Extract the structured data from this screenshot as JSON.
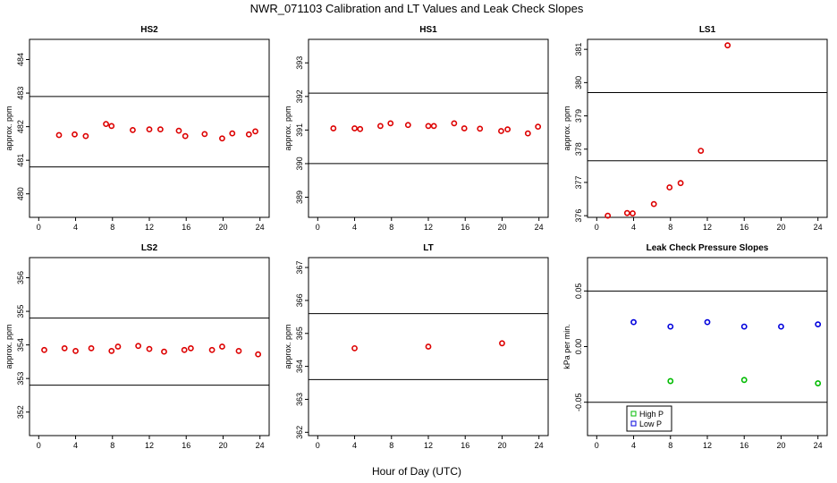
{
  "figure": {
    "title": "NWR_071103  Calibration and LT Values and Leak Check Slopes",
    "xlabel": "Hour of Day (UTC)"
  },
  "chart_data": [
    {
      "type": "scatter",
      "title": "HS2",
      "ylabel": "approx. ppm",
      "xlim": [
        -1,
        25
      ],
      "ylim": [
        479.3,
        484.6
      ],
      "xticks": [
        0,
        4,
        8,
        12,
        16,
        20,
        24
      ],
      "yticks": [
        480,
        481,
        482,
        483,
        484
      ],
      "hlines": [
        482.9,
        480.8
      ],
      "series": [
        {
          "color": "#dd0000",
          "x": [
            2.2,
            3.9,
            5.1,
            7.3,
            7.9,
            10.2,
            12.0,
            13.2,
            15.2,
            15.9,
            18.0,
            19.9,
            21.0,
            22.8,
            23.5
          ],
          "y": [
            481.75,
            481.77,
            481.72,
            482.08,
            482.02,
            481.9,
            481.92,
            481.92,
            481.88,
            481.72,
            481.78,
            481.65,
            481.8,
            481.77,
            481.86
          ]
        }
      ]
    },
    {
      "type": "scatter",
      "title": "HS1",
      "ylabel": "approx. ppm",
      "xlim": [
        -1,
        25
      ],
      "ylim": [
        388.4,
        393.7
      ],
      "xticks": [
        0,
        4,
        8,
        12,
        16,
        20,
        24
      ],
      "yticks": [
        389,
        390,
        391,
        392,
        393
      ],
      "hlines": [
        392.1,
        390.0
      ],
      "series": [
        {
          "color": "#dd0000",
          "x": [
            1.7,
            4.0,
            4.6,
            6.8,
            7.9,
            9.8,
            12.0,
            12.6,
            14.8,
            15.9,
            17.6,
            19.9,
            20.6,
            22.8,
            23.9
          ],
          "y": [
            391.05,
            391.05,
            391.03,
            391.12,
            391.2,
            391.15,
            391.12,
            391.12,
            391.2,
            391.05,
            391.04,
            390.97,
            391.02,
            390.9,
            391.1
          ]
        }
      ]
    },
    {
      "type": "scatter",
      "title": "LS1",
      "ylabel": "approx. ppm",
      "xlim": [
        -1,
        25
      ],
      "ylim": [
        375.95,
        381.3
      ],
      "xticks": [
        0,
        4,
        8,
        12,
        16,
        20,
        24
      ],
      "yticks": [
        376,
        377,
        378,
        379,
        380,
        381
      ],
      "hlines": [
        379.7,
        377.65
      ],
      "series": [
        {
          "color": "#dd0000",
          "x": [
            1.2,
            3.3,
            3.9,
            6.2,
            7.9,
            9.1,
            11.3,
            14.2
          ],
          "y": [
            376.0,
            376.08,
            376.07,
            376.35,
            376.85,
            376.98,
            377.95,
            381.12
          ]
        }
      ]
    },
    {
      "type": "scatter",
      "title": "LS2",
      "ylabel": "approx. ppm",
      "xlim": [
        -1,
        25
      ],
      "ylim": [
        351.3,
        356.6
      ],
      "xticks": [
        0,
        4,
        8,
        12,
        16,
        20,
        24
      ],
      "yticks": [
        352,
        353,
        354,
        355,
        356
      ],
      "hlines": [
        354.8,
        352.8
      ],
      "series": [
        {
          "color": "#dd0000",
          "x": [
            0.6,
            2.8,
            4.0,
            5.7,
            7.9,
            8.6,
            10.8,
            12.0,
            13.6,
            15.8,
            16.5,
            18.8,
            19.9,
            21.7,
            23.8
          ],
          "y": [
            353.85,
            353.9,
            353.82,
            353.9,
            353.82,
            353.95,
            353.97,
            353.88,
            353.8,
            353.85,
            353.9,
            353.85,
            353.95,
            353.82,
            353.72
          ]
        }
      ]
    },
    {
      "type": "scatter",
      "title": "LT",
      "ylabel": "approx. ppm",
      "xlim": [
        -1,
        25
      ],
      "ylim": [
        361.9,
        367.3
      ],
      "xticks": [
        0,
        4,
        8,
        12,
        16,
        20,
        24
      ],
      "yticks": [
        362,
        363,
        364,
        365,
        366,
        367
      ],
      "hlines": [
        365.6,
        363.6
      ],
      "series": [
        {
          "color": "#dd0000",
          "x": [
            4.0,
            12.0,
            20.0
          ],
          "y": [
            364.55,
            364.6,
            364.7
          ]
        }
      ]
    },
    {
      "type": "scatter",
      "title": "Leak Check Pressure Slopes",
      "ylabel": "kPa per min.",
      "xlim": [
        -1,
        25
      ],
      "ylim": [
        -0.08,
        0.08
      ],
      "xticks": [
        0,
        4,
        8,
        12,
        16,
        20,
        24
      ],
      "yticks": [
        -0.05,
        0.0,
        0.05
      ],
      "ytick_labels": [
        "-0.05",
        "0.00",
        "0.05"
      ],
      "hlines": [
        0.05,
        -0.05
      ],
      "legend": "bottom-left",
      "series": [
        {
          "name": "High P",
          "color": "#00bb00",
          "x": [
            8,
            16,
            24
          ],
          "y": [
            -0.031,
            -0.03,
            -0.033
          ]
        },
        {
          "name": "Low P",
          "color": "#0000dd",
          "x": [
            4,
            8,
            12,
            16,
            20,
            24
          ],
          "y": [
            0.022,
            0.018,
            0.022,
            0.018,
            0.018,
            0.02
          ]
        }
      ]
    }
  ]
}
